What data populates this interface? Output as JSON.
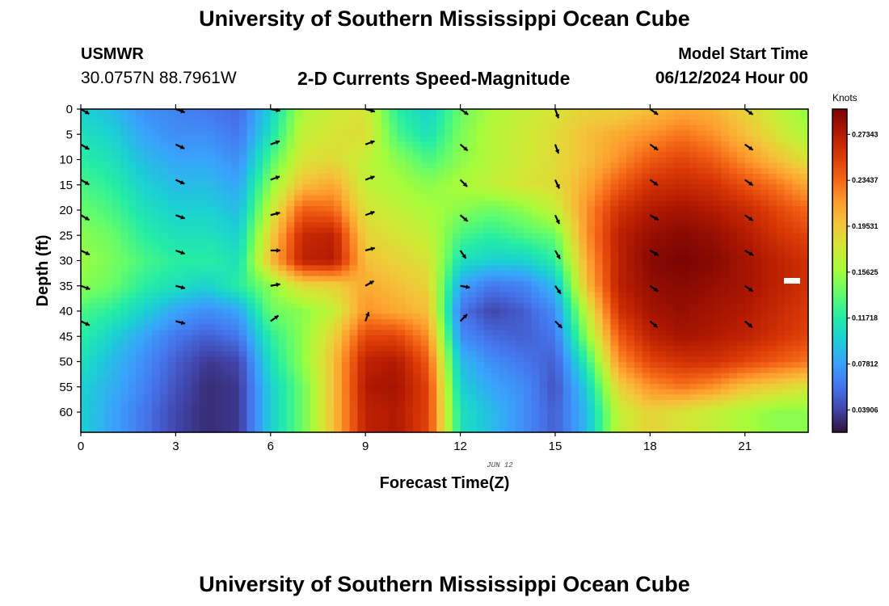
{
  "header": {
    "title": "University of Southern Mississippi Ocean Cube",
    "station": "USMWR",
    "coords": "30.0757N  88.7961W",
    "subtitle": "2-D Currents Speed-Magnitude",
    "model_label": "Model Start Time",
    "model_time": "06/12/2024 Hour 00"
  },
  "footer": {
    "title": "University of Southern Mississippi Ocean Cube"
  },
  "colors": {
    "arrow": "#000000",
    "colormap": [
      "#30123b",
      "#4145ab",
      "#4675ed",
      "#39a2fc",
      "#1bcfd4",
      "#24eca6",
      "#61fc6c",
      "#a4fc3b",
      "#d1e834",
      "#f3c63a",
      "#fe9b2d",
      "#f36315",
      "#d93806",
      "#b11901",
      "#7a0403"
    ]
  },
  "chart_data": {
    "type": "heatmap",
    "xlabel": "Forecast Time(Z)",
    "ylabel": "Depth (ft)",
    "date_label": "JUN 12",
    "xlim": [
      0,
      23
    ],
    "ylim": [
      0,
      64
    ],
    "x_ticks": [
      0,
      3,
      6,
      9,
      12,
      15,
      18,
      21
    ],
    "y_ticks": [
      0,
      5,
      10,
      15,
      20,
      25,
      30,
      35,
      40,
      45,
      50,
      55,
      60
    ],
    "colorbar": {
      "title": "Knots",
      "vmin": 0.02,
      "vmax": 0.295,
      "tick_labels": [
        "0.03906",
        "0.07812",
        "0.11718",
        "0.15625",
        "0.19531",
        "0.23437",
        "0.27343"
      ]
    },
    "speed_knots": {
      "hours": [
        0,
        1,
        2,
        3,
        4,
        5,
        6,
        7,
        8,
        9,
        10,
        11,
        12,
        13,
        14,
        15,
        16,
        17,
        18,
        19,
        20,
        21,
        22,
        23
      ],
      "depths": [
        0,
        5,
        10,
        15,
        20,
        25,
        30,
        35,
        40,
        45,
        50,
        55,
        60
      ],
      "rows": [
        [
          0.1,
          0.09,
          0.07,
          0.065,
          0.06,
          0.055,
          0.1,
          0.16,
          0.175,
          0.18,
          0.12,
          0.1,
          0.14,
          0.16,
          0.17,
          0.18,
          0.19,
          0.19,
          0.2,
          0.21,
          0.205,
          0.19,
          0.17,
          0.15
        ],
        [
          0.11,
          0.1,
          0.08,
          0.07,
          0.07,
          0.06,
          0.11,
          0.17,
          0.18,
          0.185,
          0.13,
          0.11,
          0.145,
          0.165,
          0.175,
          0.185,
          0.2,
          0.21,
          0.22,
          0.23,
          0.22,
          0.2,
          0.18,
          0.16
        ],
        [
          0.12,
          0.11,
          0.09,
          0.08,
          0.08,
          0.07,
          0.13,
          0.18,
          0.185,
          0.17,
          0.15,
          0.13,
          0.15,
          0.165,
          0.175,
          0.185,
          0.2,
          0.22,
          0.24,
          0.25,
          0.24,
          0.22,
          0.2,
          0.18
        ],
        [
          0.13,
          0.12,
          0.1,
          0.09,
          0.09,
          0.08,
          0.15,
          0.2,
          0.21,
          0.17,
          0.16,
          0.15,
          0.16,
          0.17,
          0.18,
          0.185,
          0.21,
          0.24,
          0.26,
          0.265,
          0.26,
          0.245,
          0.23,
          0.21
        ],
        [
          0.14,
          0.13,
          0.11,
          0.1,
          0.1,
          0.09,
          0.17,
          0.24,
          0.235,
          0.18,
          0.17,
          0.16,
          0.15,
          0.14,
          0.15,
          0.17,
          0.22,
          0.26,
          0.275,
          0.28,
          0.275,
          0.265,
          0.25,
          0.235
        ],
        [
          0.15,
          0.14,
          0.12,
          0.11,
          0.11,
          0.1,
          0.19,
          0.265,
          0.27,
          0.19,
          0.18,
          0.17,
          0.13,
          0.12,
          0.13,
          0.14,
          0.22,
          0.27,
          0.285,
          0.29,
          0.285,
          0.275,
          0.26,
          0.25
        ],
        [
          0.155,
          0.145,
          0.13,
          0.12,
          0.12,
          0.11,
          0.2,
          0.27,
          0.275,
          0.2,
          0.19,
          0.18,
          0.11,
          0.1,
          0.1,
          0.12,
          0.21,
          0.27,
          0.29,
          0.295,
          0.29,
          0.28,
          0.27,
          0.26
        ],
        [
          0.15,
          0.14,
          0.12,
          0.11,
          0.1,
          0.12,
          0.15,
          0.185,
          0.19,
          0.21,
          0.2,
          0.19,
          0.08,
          0.06,
          0.065,
          0.09,
          0.2,
          0.27,
          0.285,
          0.29,
          0.285,
          0.28,
          0.27,
          0.26
        ],
        [
          0.13,
          0.12,
          0.1,
          0.08,
          0.07,
          0.08,
          0.14,
          0.15,
          0.17,
          0.22,
          0.21,
          0.2,
          0.06,
          0.04,
          0.05,
          0.07,
          0.17,
          0.26,
          0.28,
          0.285,
          0.28,
          0.275,
          0.265,
          0.255
        ],
        [
          0.12,
          0.1,
          0.08,
          0.06,
          0.05,
          0.06,
          0.12,
          0.15,
          0.19,
          0.25,
          0.25,
          0.22,
          0.07,
          0.055,
          0.05,
          0.06,
          0.15,
          0.24,
          0.27,
          0.28,
          0.275,
          0.27,
          0.26,
          0.25
        ],
        [
          0.11,
          0.09,
          0.07,
          0.05,
          0.035,
          0.04,
          0.11,
          0.15,
          0.2,
          0.27,
          0.275,
          0.24,
          0.09,
          0.07,
          0.06,
          0.05,
          0.12,
          0.22,
          0.25,
          0.26,
          0.26,
          0.25,
          0.24,
          0.23
        ],
        [
          0.1,
          0.085,
          0.065,
          0.045,
          0.03,
          0.035,
          0.1,
          0.14,
          0.2,
          0.275,
          0.28,
          0.25,
          0.1,
          0.08,
          0.07,
          0.045,
          0.1,
          0.19,
          0.22,
          0.23,
          0.22,
          0.2,
          0.19,
          0.18
        ],
        [
          0.1,
          0.08,
          0.06,
          0.04,
          0.03,
          0.035,
          0.1,
          0.14,
          0.2,
          0.27,
          0.275,
          0.25,
          0.11,
          0.09,
          0.07,
          0.05,
          0.09,
          0.17,
          0.19,
          0.18,
          0.17,
          0.16,
          0.15,
          0.15
        ]
      ]
    },
    "vectors": {
      "hours": [
        0,
        3,
        6,
        9,
        12,
        15,
        18,
        21
      ],
      "depths": [
        0,
        7,
        14,
        21,
        28,
        35,
        42
      ],
      "angles_deg": [
        [
          30,
          20,
          10,
          15,
          35,
          70,
          35,
          35
        ],
        [
          30,
          25,
          -20,
          -20,
          40,
          70,
          35,
          35
        ],
        [
          30,
          25,
          -20,
          -20,
          45,
          65,
          35,
          35
        ],
        [
          30,
          20,
          -15,
          -20,
          40,
          65,
          30,
          35
        ],
        [
          25,
          20,
          0,
          -15,
          55,
          60,
          30,
          30
        ],
        [
          20,
          15,
          -10,
          -30,
          10,
          55,
          35,
          35
        ],
        [
          25,
          15,
          -35,
          -70,
          -45,
          45,
          40,
          40
        ]
      ]
    }
  }
}
